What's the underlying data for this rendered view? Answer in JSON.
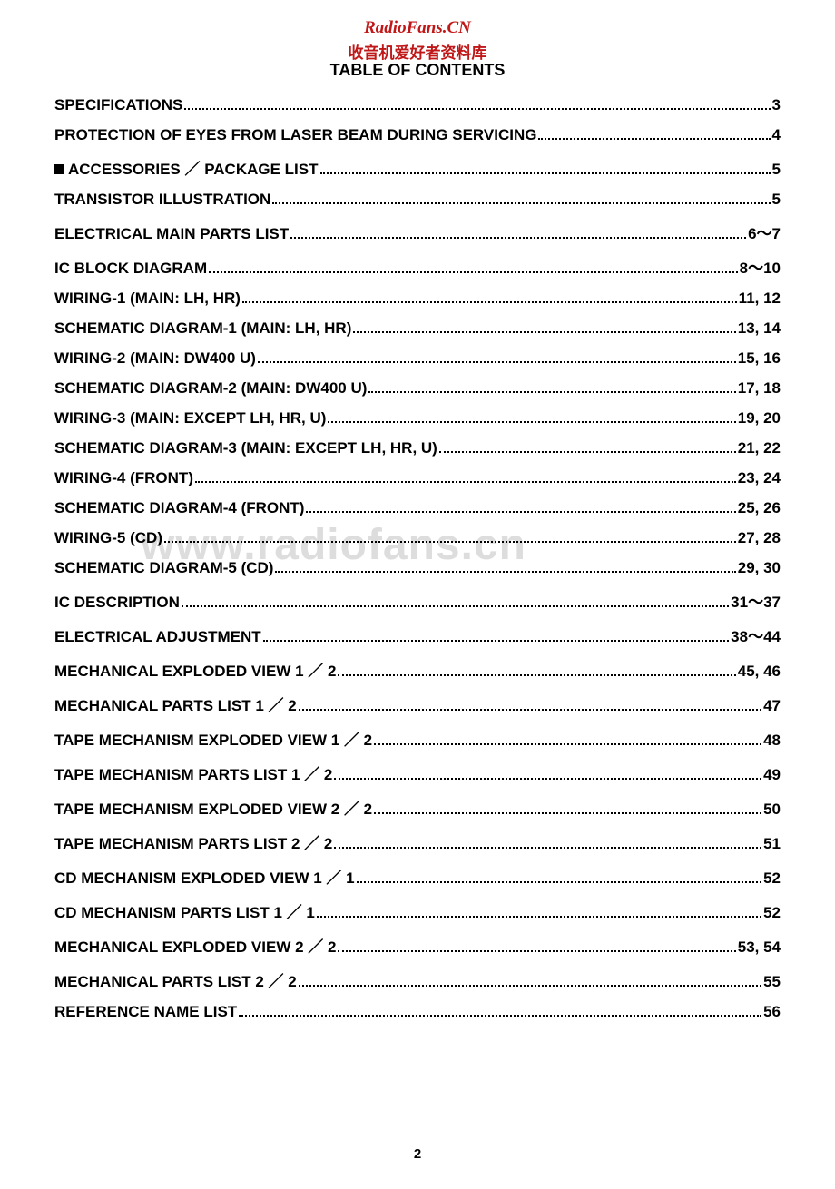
{
  "header": {
    "site_name": "RadioFans.CN",
    "chinese_text": "收音机爱好者资料库",
    "toc_title": "TABLE OF CONTENTS"
  },
  "watermark": "www.radiofans.cn",
  "page_number": "2",
  "toc": [
    {
      "label": "SPECIFICATIONS",
      "page": "3",
      "bullet": false
    },
    {
      "label": "PROTECTION OF EYES FROM LASER BEAM DURING SERVICING",
      "page": "4",
      "bullet": false
    },
    {
      "label": "ACCESSORIES ／ PACKAGE LIST",
      "page": "5",
      "bullet": true
    },
    {
      "label": "TRANSISTOR ILLUSTRATION",
      "page": "5",
      "bullet": false
    },
    {
      "label": "ELECTRICAL MAIN PARTS LIST",
      "page": "6～7",
      "bullet": false
    },
    {
      "label": "IC BLOCK DIAGRAM",
      "page": "8～10",
      "bullet": false
    },
    {
      "label": "WIRING-1 (MAIN: LH, HR)",
      "page": "11, 12",
      "bullet": false
    },
    {
      "label": "SCHEMATIC DIAGRAM-1 (MAIN: LH, HR)",
      "page": "13, 14",
      "bullet": false
    },
    {
      "label": "WIRING-2 (MAIN: DW400 U)",
      "page": "15, 16",
      "bullet": false
    },
    {
      "label": "SCHEMATIC DIAGRAM-2 (MAIN: DW400 U)",
      "page": "17, 18",
      "bullet": false
    },
    {
      "label": "WIRING-3 (MAIN: EXCEPT LH, HR, U)",
      "page": "19, 20",
      "bullet": false
    },
    {
      "label": "SCHEMATIC DIAGRAM-3 (MAIN: EXCEPT LH, HR, U)",
      "page": "21, 22",
      "bullet": false
    },
    {
      "label": "WIRING-4 (FRONT)",
      "page": "23, 24",
      "bullet": false
    },
    {
      "label": "SCHEMATIC DIAGRAM-4 (FRONT)",
      "page": "25, 26",
      "bullet": false
    },
    {
      "label": "WIRING-5 (CD)",
      "page": "27, 28",
      "bullet": false
    },
    {
      "label": "SCHEMATIC DIAGRAM-5 (CD)",
      "page": "29, 30",
      "bullet": false
    },
    {
      "label": "IC DESCRIPTION",
      "page": "31～37",
      "bullet": false
    },
    {
      "label": "ELECTRICAL ADJUSTMENT",
      "page": "38～44",
      "bullet": false
    },
    {
      "label": "MECHANICAL EXPLODED VIEW 1 ／ 2",
      "page": "45, 46",
      "bullet": false
    },
    {
      "label": "MECHANICAL PARTS LIST 1 ／ 2",
      "page": "47",
      "bullet": false
    },
    {
      "label": "TAPE MECHANISM EXPLODED VIEW 1 ／ 2",
      "page": "48",
      "bullet": false
    },
    {
      "label": "TAPE MECHANISM PARTS LIST 1 ／ 2",
      "page": "49",
      "bullet": false
    },
    {
      "label": "TAPE MECHANISM EXPLODED VIEW 2 ／ 2",
      "page": "50",
      "bullet": false
    },
    {
      "label": "TAPE MECHANISM PARTS LIST 2 ／ 2",
      "page": "51",
      "bullet": false
    },
    {
      "label": "CD MECHANISM EXPLODED VIEW 1 ／ 1",
      "page": "52",
      "bullet": false
    },
    {
      "label": "CD MECHANISM PARTS LIST 1 ／ 1",
      "page": "52",
      "bullet": false
    },
    {
      "label": "MECHANICAL EXPLODED VIEW 2 ／ 2",
      "page": "53, 54",
      "bullet": false
    },
    {
      "label": "MECHANICAL PARTS LIST 2 ／ 2",
      "page": "55",
      "bullet": false
    },
    {
      "label": "REFERENCE NAME LIST",
      "page": "56",
      "bullet": false
    }
  ],
  "styles": {
    "body_width": 920,
    "body_height": 1310,
    "background_color": "#ffffff",
    "text_color": "#000000",
    "accent_color": "#c01818",
    "watermark_color": "rgba(180,180,180,0.45)",
    "toc_fontsize": 17,
    "title_fontsize": 18,
    "site_name_fontsize": 19
  }
}
